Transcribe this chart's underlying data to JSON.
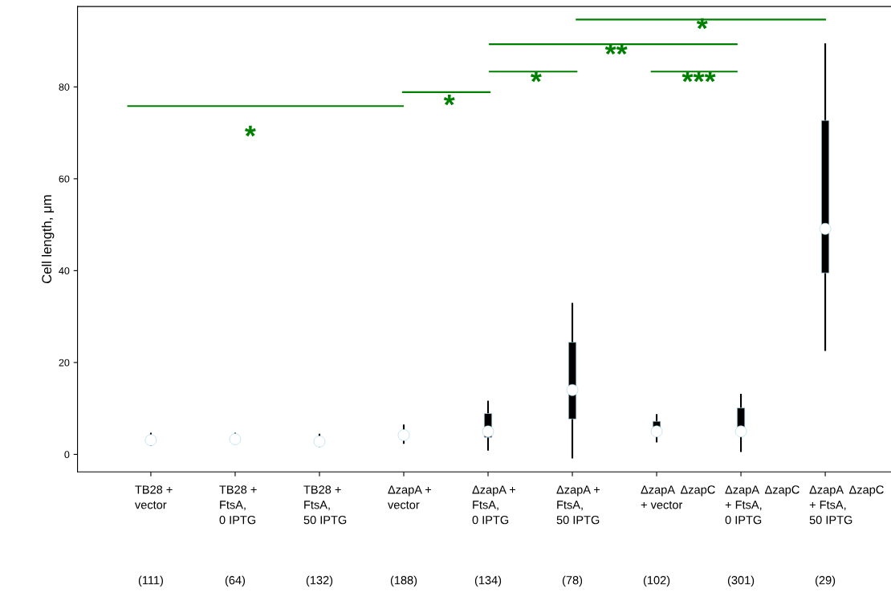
{
  "chart_data": {
    "type": "box",
    "ylabel": "Cell length, μm",
    "categories": [
      "TB28 +\nvector",
      "TB28 +\nFtsA,\n0 IPTG",
      "TB28 +\nFtsA,\n50 IPTG",
      "ΔzapA +\nvector",
      "ΔzapA +\nFtsA,\n0 IPTG",
      "ΔzapA +\nFtsA,\n50 IPTG",
      "ΔzapA  ΔzapC\n+ vector",
      "ΔzapA  ΔzapC\n+ FtsA,\n0 IPTG",
      "ΔzapA  ΔzapC\n+ FtsA,\n50 IPTG"
    ],
    "series": [
      {
        "color": "#add8e6",
        "boxes": [
          {
            "low": 2.0,
            "q1": 2.6,
            "median": 3.1,
            "q3": 3.8,
            "high": 4.5
          },
          {
            "low": 2.5,
            "q1": 2.8,
            "median": 3.3,
            "q3": 3.8,
            "high": 4.5
          },
          {
            "low": 1.8,
            "q1": 2.3,
            "median": 2.8,
            "q3": 3.5,
            "high": 4.3
          },
          {
            "low": 2.5,
            "q1": 3.4,
            "median": 4.2,
            "q3": 5.0,
            "high": 6.3
          },
          {
            "low": 1.0,
            "q1": 3.7,
            "median": 5.0,
            "q3": 8.9,
            "high": 11.5
          },
          {
            "low": -0.7,
            "q1": 7.7,
            "median": 14.0,
            "q3": 24.4,
            "high": 32.8
          },
          {
            "low": 2.8,
            "q1": 4.5,
            "median": 5.0,
            "q3": 7.2,
            "high": 8.6
          },
          {
            "low": 0.7,
            "q1": 4.2,
            "median": 5.0,
            "q3": 10.1,
            "high": 13.0
          },
          {
            "low": 22.7,
            "q1": 39.5,
            "median": 49.1,
            "q3": 72.7,
            "high": 89.3
          }
        ]
      }
    ],
    "ylim": [
      -3.8,
      97.5
    ],
    "yticks": [
      0,
      20,
      40,
      60,
      80
    ],
    "grid": false,
    "legend": false,
    "annotations": [
      "*",
      "*",
      "*",
      "**",
      "***",
      "*",
      "(111)",
      "(64)",
      "(132)",
      "(188)",
      "(134)",
      "(78)",
      "(102)",
      "(301)",
      "(29)"
    ]
  }
}
